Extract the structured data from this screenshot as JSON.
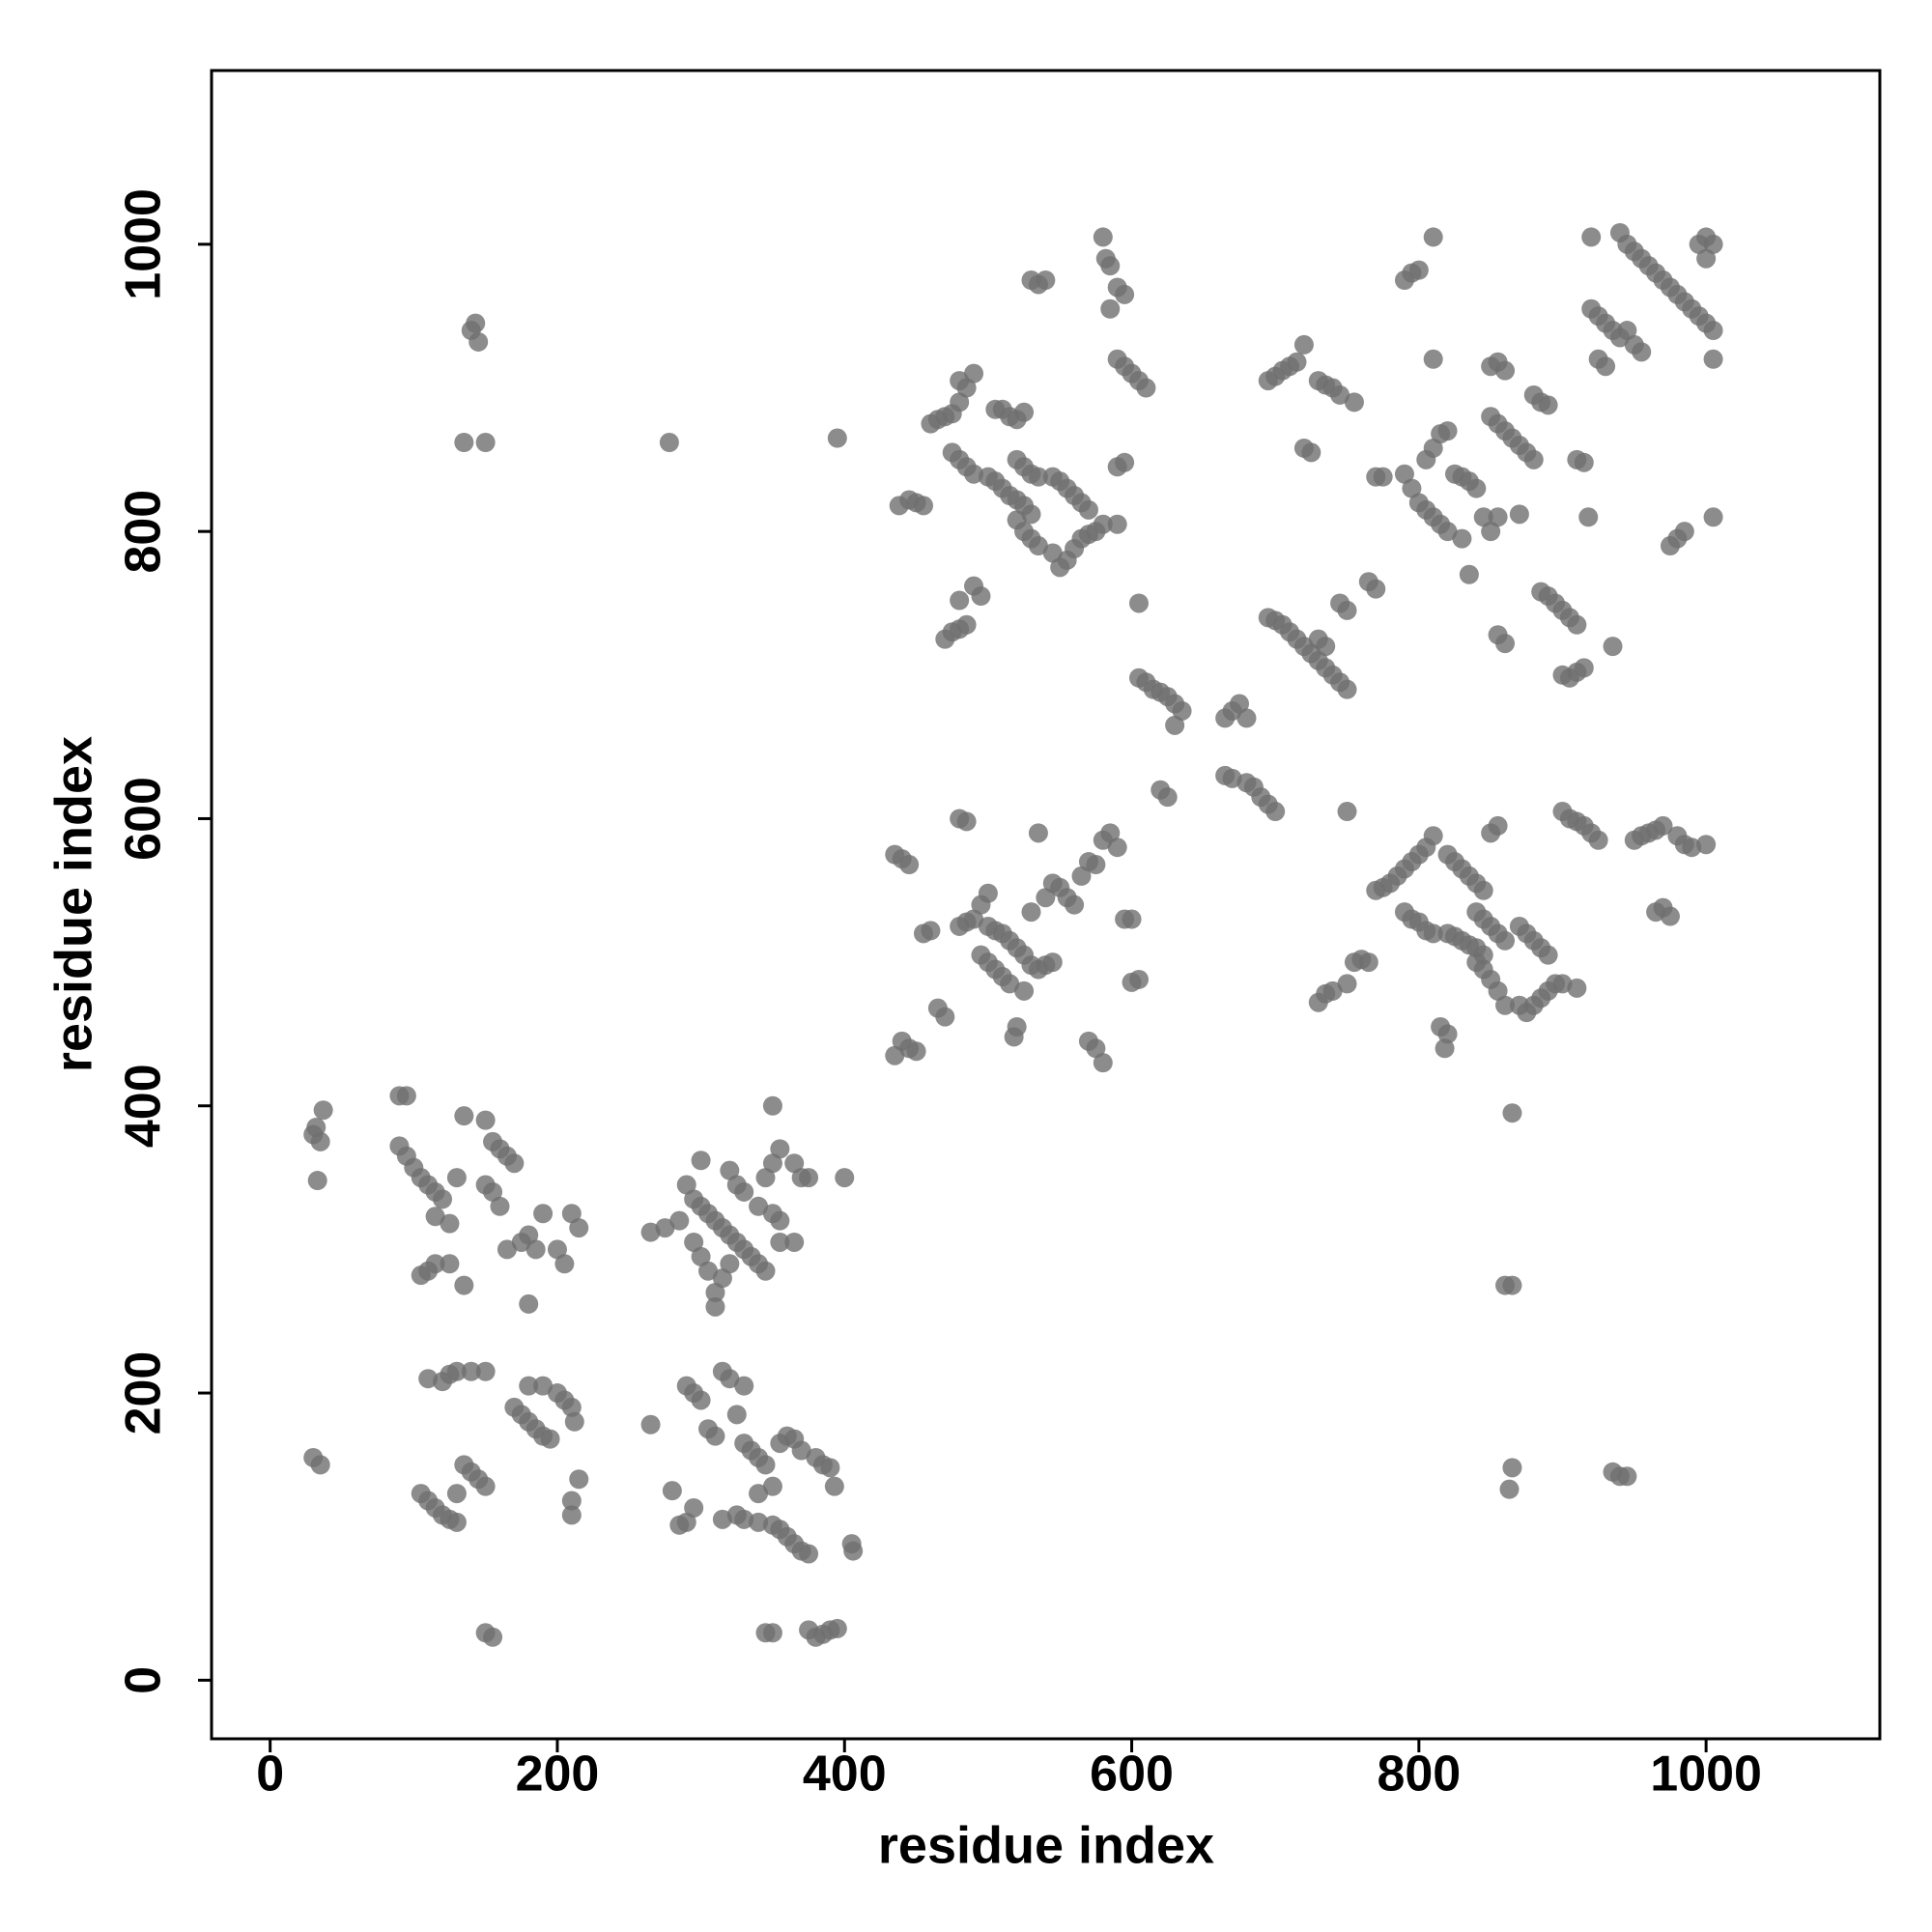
{
  "chart_data": {
    "type": "scatter",
    "xlabel": "residue index",
    "ylabel": "residue index",
    "xlim": [
      -40.8,
      1121
    ],
    "ylim": [
      -40.8,
      1121
    ],
    "xticks": [
      0,
      200,
      400,
      600,
      800,
      1000
    ],
    "yticks": [
      0,
      200,
      400,
      600,
      800,
      1000
    ],
    "color": "#6f6f6f",
    "x": [
      30,
      32,
      35,
      37,
      33,
      30,
      35,
      90,
      95,
      90,
      95,
      100,
      105,
      110,
      115,
      120,
      115,
      125,
      105,
      110,
      115,
      125,
      135,
      130,
      135,
      150,
      155,
      160,
      165,
      170,
      150,
      155,
      160,
      165,
      175,
      180,
      185,
      190,
      200,
      205,
      210,
      215,
      180,
      110,
      120,
      125,
      130,
      140,
      150,
      105,
      110,
      115,
      120,
      125,
      130,
      135,
      140,
      145,
      150,
      130,
      155,
      150,
      170,
      175,
      180,
      185,
      190,
      195,
      180,
      190,
      200,
      205,
      210,
      212,
      210,
      215,
      210,
      140,
      143,
      145,
      135,
      150,
      265,
      275,
      285,
      290,
      295,
      300,
      305,
      310,
      315,
      320,
      325,
      330,
      335,
      340,
      345,
      295,
      300,
      305,
      310,
      315,
      320,
      310,
      300,
      320,
      325,
      330,
      340,
      350,
      355,
      345,
      350,
      355,
      365,
      370,
      375,
      350,
      400,
      355,
      365,
      265,
      280,
      285,
      290,
      295,
      290,
      295,
      300,
      305,
      310,
      315,
      320,
      330,
      325,
      330,
      335,
      340,
      345,
      350,
      340,
      315,
      325,
      330,
      340,
      350,
      355,
      360,
      365,
      370,
      375,
      355,
      360,
      365,
      370,
      380,
      385,
      390,
      393,
      345,
      350,
      375,
      380,
      385,
      390,
      395,
      405,
      406,
      278,
      395,
      435,
      440,
      445,
      435,
      440,
      445,
      450,
      455,
      460,
      465,
      470,
      480,
      485,
      490,
      495,
      500,
      480,
      485,
      495,
      500,
      505,
      510,
      515,
      500,
      505,
      510,
      515,
      520,
      525,
      530,
      535,
      540,
      545,
      525,
      520,
      518,
      530,
      535,
      540,
      545,
      550,
      555,
      560,
      565,
      570,
      575,
      580,
      585,
      590,
      595,
      600,
      605,
      600,
      570,
      575,
      580,
      438,
      445,
      450,
      455,
      460,
      465,
      470,
      475,
      480,
      485,
      490,
      480,
      475,
      480,
      485,
      490,
      500,
      505,
      510,
      515,
      520,
      525,
      530,
      520,
      525,
      530,
      535,
      545,
      550,
      555,
      560,
      565,
      570,
      575,
      580,
      590,
      505,
      510,
      515,
      520,
      525,
      520,
      525,
      530,
      535,
      545,
      550,
      555,
      560,
      565,
      570,
      490,
      495,
      475,
      480,
      485,
      470,
      480,
      530,
      535,
      540,
      580,
      582,
      585,
      590,
      595,
      585,
      590,
      595,
      600,
      605,
      610,
      590,
      595,
      605,
      605,
      610,
      615,
      620,
      625,
      630,
      635,
      620,
      625,
      630,
      665,
      670,
      675,
      680,
      665,
      670,
      680,
      685,
      690,
      695,
      700,
      695,
      700,
      705,
      710,
      715,
      720,
      725,
      730,
      735,
      740,
      745,
      750,
      745,
      750,
      730,
      735,
      695,
      700,
      705,
      710,
      715,
      720,
      730,
      735,
      740,
      745,
      755,
      720,
      725,
      750,
      765,
      770,
      770,
      775,
      730,
      735,
      740,
      750,
      755,
      760,
      765,
      770,
      775,
      780,
      785,
      790,
      795,
      800,
      805,
      810,
      790,
      795,
      800,
      805,
      810,
      820,
      825,
      830,
      835,
      840,
      845,
      840,
      845,
      850,
      855,
      860,
      820,
      825,
      830,
      835,
      840,
      845,
      840,
      845,
      850,
      855,
      860,
      815,
      820,
      818,
      850,
      855,
      870,
      875,
      880,
      885,
      890,
      870,
      875,
      880,
      885,
      890,
      895,
      900,
      910,
      900,
      905,
      910,
      915,
      920,
      925,
      950,
      955,
      960,
      965,
      970,
      980,
      985,
      990,
      1000,
      965,
      970,
      975,
      865,
      860,
      865,
      865,
      863,
      935,
      940,
      945,
      790,
      795,
      800,
      810,
      810,
      790,
      795,
      800,
      805,
      810,
      815,
      820,
      830,
      805,
      810,
      815,
      820,
      825,
      830,
      835,
      840,
      845,
      850,
      855,
      835,
      850,
      855,
      860,
      850,
      855,
      860,
      865,
      870,
      875,
      880,
      870,
      855,
      860,
      885,
      890,
      880,
      885,
      890,
      895,
      900,
      905,
      910,
      900,
      905,
      910,
      915,
      910,
      915,
      918,
      920,
      920,
      925,
      930,
      935,
      940,
      945,
      950,
      955,
      925,
      930,
      940,
      945,
      950,
      955,
      960,
      965,
      970,
      975,
      980,
      985,
      990,
      995,
      1000,
      1005,
      995,
      1000,
      1005,
      1000,
      1005,
      1005,
      975,
      980,
      985,
      935
    ],
    "values": [
      380,
      385,
      375,
      397,
      348,
      155,
      150,
      407,
      407,
      372,
      365,
      357,
      350,
      345,
      340,
      335,
      323,
      318,
      282,
      285,
      290,
      290,
      275,
      350,
      393,
      390,
      375,
      370,
      365,
      360,
      345,
      340,
      330,
      300,
      305,
      310,
      300,
      325,
      300,
      290,
      325,
      315,
      262,
      210,
      208,
      213,
      215,
      215,
      215,
      130,
      125,
      120,
      115,
      112,
      110,
      150,
      145,
      140,
      135,
      130,
      30,
      33,
      190,
      185,
      180,
      175,
      170,
      168,
      205,
      205,
      200,
      195,
      190,
      180,
      125,
      140,
      115,
      940,
      945,
      932,
      862,
      862,
      312,
      315,
      320,
      345,
      335,
      330,
      325,
      320,
      315,
      310,
      305,
      300,
      295,
      290,
      285,
      305,
      295,
      285,
      270,
      280,
      290,
      260,
      362,
      355,
      345,
      340,
      330,
      325,
      320,
      350,
      360,
      370,
      360,
      350,
      350,
      400,
      350,
      305,
      305,
      178,
      132,
      108,
      110,
      120,
      205,
      200,
      195,
      175,
      170,
      215,
      210,
      205,
      185,
      165,
      160,
      155,
      150,
      135,
      130,
      112,
      115,
      112,
      110,
      108,
      105,
      100,
      95,
      90,
      88,
      165,
      170,
      168,
      160,
      155,
      150,
      148,
      135,
      33,
      33,
      35,
      30,
      32,
      35,
      36,
      95,
      90,
      862,
      865,
      575,
      572,
      568,
      435,
      445,
      440,
      438,
      520,
      522,
      468,
      462,
      525,
      528,
      530,
      540,
      548,
      600,
      598,
      505,
      500,
      495,
      490,
      485,
      525,
      522,
      520,
      515,
      510,
      505,
      498,
      495,
      498,
      500,
      480,
      455,
      448,
      535,
      590,
      545,
      555,
      552,
      545,
      540,
      560,
      570,
      568,
      585,
      590,
      580,
      530,
      530,
      488,
      486,
      445,
      440,
      430,
      818,
      822,
      820,
      818,
      875,
      878,
      880,
      882,
      890,
      900,
      910,
      905,
      855,
      850,
      845,
      840,
      838,
      835,
      830,
      825,
      822,
      818,
      812,
      808,
      800,
      795,
      790,
      785,
      775,
      780,
      788,
      795,
      798,
      800,
      805,
      805,
      885,
      885,
      880,
      878,
      883,
      850,
      845,
      840,
      838,
      838,
      835,
      830,
      825,
      820,
      815,
      762,
      755,
      730,
      732,
      735,
      725,
      752,
      975,
      972,
      975,
      1005,
      990,
      985,
      970,
      965,
      955,
      920,
      915,
      910,
      905,
      900,
      845,
      848,
      750,
      698,
      695,
      690,
      688,
      685,
      680,
      675,
      620,
      615,
      665,
      670,
      675,
      680,
      670,
      630,
      628,
      625,
      622,
      615,
      610,
      605,
      740,
      738,
      735,
      730,
      725,
      720,
      715,
      710,
      705,
      700,
      695,
      690,
      750,
      745,
      725,
      720,
      905,
      908,
      912,
      915,
      918,
      930,
      905,
      902,
      900,
      895,
      890,
      858,
      855,
      605,
      765,
      760,
      838,
      838,
      472,
      478,
      480,
      485,
      500,
      502,
      500,
      550,
      552,
      555,
      560,
      565,
      570,
      575,
      580,
      588,
      535,
      530,
      528,
      522,
      520,
      520,
      518,
      515,
      512,
      510,
      505,
      500,
      495,
      488,
      480,
      470,
      575,
      570,
      565,
      560,
      555,
      550,
      535,
      530,
      525,
      520,
      515,
      455,
      450,
      440,
      590,
      595,
      525,
      520,
      515,
      510,
      505,
      470,
      465,
      470,
      475,
      480,
      485,
      485,
      482,
      605,
      600,
      598,
      595,
      590,
      585,
      585,
      588,
      590,
      592,
      595,
      588,
      582,
      580,
      582,
      535,
      538,
      532,
      395,
      275,
      275,
      148,
      133,
      145,
      142,
      142,
      975,
      980,
      982,
      1005,
      920,
      840,
      830,
      820,
      815,
      810,
      805,
      800,
      795,
      850,
      858,
      868,
      870,
      840,
      838,
      835,
      830,
      810,
      800,
      810,
      770,
      915,
      918,
      912,
      880,
      875,
      870,
      865,
      860,
      855,
      850,
      812,
      728,
      722,
      890,
      888,
      895,
      758,
      755,
      750,
      745,
      740,
      735,
      700,
      698,
      702,
      705,
      850,
      848,
      810,
      1005,
      955,
      950,
      945,
      940,
      935,
      940,
      930,
      925,
      920,
      915,
      1008,
      1000,
      995,
      990,
      985,
      980,
      975,
      970,
      965,
      960,
      955,
      950,
      945,
      940,
      1000,
      1005,
      1000,
      990,
      920,
      810,
      790,
      795,
      800,
      720
    ]
  }
}
